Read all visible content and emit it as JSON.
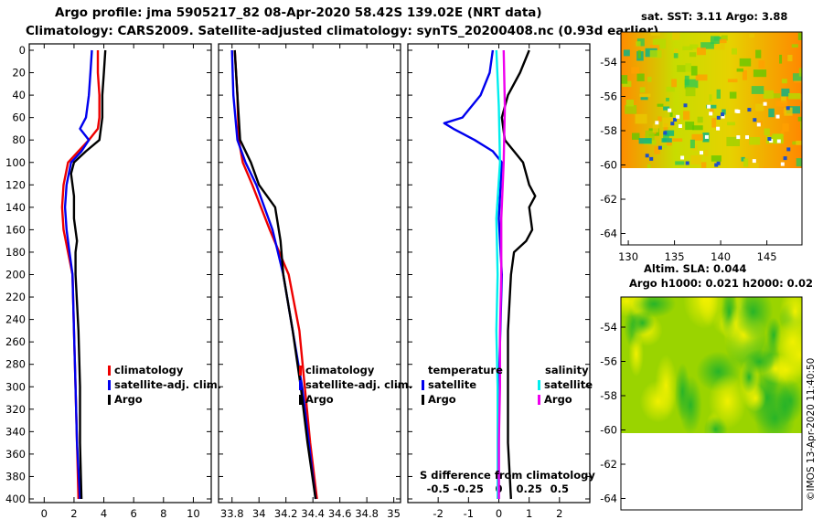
{
  "header": {
    "title_line1": "Argo profile: jma 5905217_82 08-Apr-2020 58.42S 139.02E (NRT data)",
    "title_line2": "Climatology: CARS2009. Satellite-adjusted climatology: synTS_20200408.nc (0.93d earlier)"
  },
  "colors": {
    "climatology": "#ee0000",
    "satellite": "#0000ee",
    "argo": "#000000",
    "sat_temp": "#0000ee",
    "sat_sal": "#00eeee",
    "argo_sal": "#ee00ee"
  },
  "chart_data": [
    {
      "type": "line",
      "name": "temperature",
      "xlabel": "",
      "ylabel": "",
      "xlim": [
        -1,
        11.2
      ],
      "ylim": [
        400,
        0
      ],
      "xticks": [
        "0",
        "2",
        "4",
        "6",
        "8",
        "10"
      ],
      "yticks": [
        "0",
        "20",
        "40",
        "60",
        "80",
        "100",
        "120",
        "140",
        "160",
        "180",
        "200",
        "220",
        "240",
        "260",
        "280",
        "300",
        "320",
        "340",
        "360",
        "380",
        "400"
      ],
      "legend": [
        "climatology",
        "satellite-adj. clim.",
        "Argo"
      ],
      "series": [
        {
          "name": "climatology",
          "depth": [
            0,
            20,
            40,
            60,
            70,
            80,
            90,
            100,
            120,
            140,
            160,
            180,
            200,
            250,
            300,
            350,
            400
          ],
          "values": [
            3.6,
            3.6,
            3.7,
            3.7,
            3.6,
            3.0,
            2.3,
            1.6,
            1.3,
            1.2,
            1.3,
            1.6,
            1.9,
            2.0,
            2.1,
            2.2,
            2.3
          ]
        },
        {
          "name": "satellite-adj. clim.",
          "depth": [
            0,
            20,
            40,
            60,
            70,
            80,
            90,
            100,
            120,
            140,
            160,
            180,
            200,
            250,
            300,
            350,
            400
          ],
          "values": [
            3.2,
            3.1,
            3.0,
            2.8,
            2.4,
            3.0,
            2.5,
            1.8,
            1.5,
            1.4,
            1.5,
            1.7,
            1.9,
            2.0,
            2.1,
            2.2,
            2.4
          ]
        },
        {
          "name": "Argo",
          "depth": [
            0,
            20,
            40,
            60,
            80,
            90,
            100,
            110,
            130,
            150,
            170,
            180,
            200,
            250,
            300,
            350,
            400
          ],
          "values": [
            4.1,
            4.0,
            3.9,
            3.9,
            3.7,
            2.8,
            2.0,
            1.8,
            2.0,
            2.0,
            2.2,
            2.1,
            2.1,
            2.3,
            2.4,
            2.4,
            2.5
          ]
        }
      ]
    },
    {
      "type": "line",
      "name": "salinity",
      "xlabel": "",
      "ylabel": "",
      "xlim": [
        33.7,
        35.05
      ],
      "ylim": [
        400,
        0
      ],
      "xticks": [
        "33.8",
        "34",
        "34.2",
        "34.4",
        "34.6",
        "34.8",
        "35"
      ],
      "legend": [
        "climatology",
        "satellite-adj. clim.",
        "Argo"
      ],
      "series": [
        {
          "name": "climatology",
          "depth": [
            0,
            40,
            80,
            100,
            120,
            160,
            200,
            250,
            300,
            350,
            400
          ],
          "values": [
            33.82,
            33.84,
            33.85,
            33.88,
            33.95,
            34.08,
            34.22,
            34.3,
            34.34,
            34.38,
            34.43
          ]
        },
        {
          "name": "satellite-adj. clim.",
          "depth": [
            0,
            40,
            80,
            100,
            120,
            160,
            200,
            250,
            300,
            350,
            400
          ],
          "values": [
            33.8,
            33.81,
            33.84,
            33.9,
            33.98,
            34.1,
            34.18,
            34.25,
            34.32,
            34.37,
            34.42
          ]
        },
        {
          "name": "Argo",
          "depth": [
            0,
            40,
            80,
            100,
            120,
            140,
            170,
            200,
            250,
            300,
            350,
            400
          ],
          "values": [
            33.82,
            33.84,
            33.86,
            33.94,
            34.0,
            34.12,
            34.16,
            34.18,
            34.25,
            34.31,
            34.36,
            34.42
          ]
        }
      ]
    },
    {
      "type": "line",
      "name": "difference from climatology",
      "xlabel": "S difference from climatology",
      "xlim": [
        -3,
        3
      ],
      "ylim": [
        400,
        0
      ],
      "xticks": [
        "-2",
        "-1",
        "0",
        "1",
        "2"
      ],
      "sxticks": [
        "-0.5",
        "-0.25",
        "0",
        "0.25",
        "0.5"
      ],
      "legend_left_title": "temperature",
      "legend_right_title": "salinity",
      "legend": [
        "satellite",
        "Argo",
        "satellite",
        "Argo"
      ],
      "series": [
        {
          "name": "T satellite",
          "depth": [
            0,
            20,
            40,
            60,
            65,
            70,
            80,
            90,
            100,
            150,
            200,
            300,
            400
          ],
          "values": [
            -0.2,
            -0.3,
            -0.6,
            -1.2,
            -1.8,
            -1.5,
            -0.8,
            -0.2,
            0.1,
            0.0,
            0.1,
            0.0,
            0.0
          ]
        },
        {
          "name": "T Argo",
          "depth": [
            0,
            20,
            40,
            60,
            80,
            90,
            100,
            120,
            130,
            140,
            160,
            170,
            180,
            200,
            250,
            300,
            350,
            400
          ],
          "values": [
            1.0,
            0.7,
            0.3,
            0.1,
            0.2,
            0.5,
            0.8,
            1.0,
            1.2,
            1.0,
            1.1,
            0.9,
            0.5,
            0.4,
            0.3,
            0.3,
            0.3,
            0.4
          ]
        },
        {
          "name": "S satellite",
          "depth": [
            0,
            50,
            100,
            150,
            200,
            250,
            300,
            350,
            400
          ],
          "values": [
            -0.02,
            0.0,
            0.01,
            -0.02,
            -0.01,
            -0.02,
            -0.01,
            -0.01,
            -0.01
          ]
        },
        {
          "name": "S Argo",
          "depth": [
            0,
            50,
            100,
            150,
            200,
            250,
            300,
            350,
            400
          ],
          "values": [
            0.04,
            0.05,
            0.04,
            0.02,
            0.02,
            0.01,
            0.01,
            0.0,
            0.0
          ]
        }
      ]
    }
  ],
  "maps": {
    "sst": {
      "title": "sat. SST: 3.11 Argo: 3.88",
      "xticks": [
        "130",
        "135",
        "140",
        "145"
      ],
      "yticks": [
        "-54",
        "-56",
        "-58",
        "-60",
        "-62",
        "-64"
      ]
    },
    "sla": {
      "title_line1": "Altim. SLA: 0.044",
      "title_line2": "Argo h1000: 0.021 h2000: 0.02",
      "yticks": [
        "-54",
        "-56",
        "-58",
        "-60",
        "-62",
        "-64"
      ]
    }
  },
  "credit": "©IMOS 13-Apr-2020 11:40:50"
}
